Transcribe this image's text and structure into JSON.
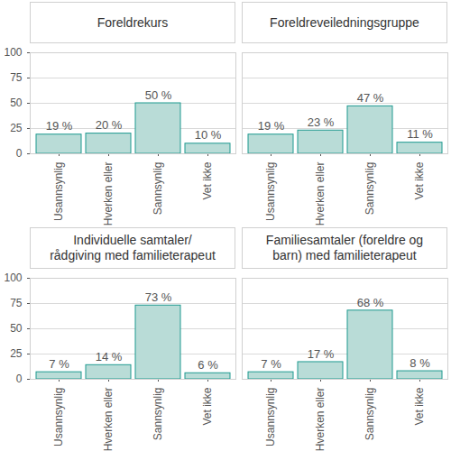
{
  "chart_data": [
    {
      "type": "bar",
      "title": "Foreldrekurs",
      "categories": [
        "Usannsynlig",
        "Hverken eller",
        "Sannsynlig",
        "Vet ikke"
      ],
      "values": [
        19,
        20,
        50,
        10
      ],
      "value_labels": [
        "19 %",
        "20 %",
        "50 %",
        "10 %"
      ],
      "color": "#b9dcd7",
      "ylim": [
        0,
        100
      ],
      "yticks": [
        0,
        25,
        50,
        75,
        100
      ],
      "grid": true,
      "data_labels": true
    },
    {
      "type": "bar",
      "title": "Foreldreveiledningsgruppe",
      "categories": [
        "Usannsynlig",
        "Hverken eller",
        "Sannsynlig",
        "Vet ikke"
      ],
      "values": [
        19,
        23,
        47,
        11
      ],
      "value_labels": [
        "19 %",
        "23 %",
        "47 %",
        "11 %"
      ],
      "color": "#b9dcd7",
      "ylim": [
        0,
        100
      ],
      "yticks": [
        0,
        25,
        50,
        75,
        100
      ],
      "grid": true,
      "data_labels": true,
      "tick_labels": "x"
    },
    {
      "type": "bar",
      "title": "Individuelle samtaler/\nrådgiving med familieterapeut",
      "categories": [
        "Usannsynlig",
        "Hverken eller",
        "Sannsynlig",
        "Vet ikke"
      ],
      "values": [
        7,
        14,
        73,
        6
      ],
      "value_labels": [
        "7 %",
        "14 %",
        "73 %",
        "6 %"
      ],
      "color": "#b9dcd7",
      "ylim": [
        0,
        100
      ],
      "yticks": [
        0,
        25,
        50,
        75,
        100
      ],
      "grid": true,
      "data_labels": true
    },
    {
      "type": "bar",
      "title": "Familiesamtaler (foreldre og\nbarn) med familieterapeut",
      "categories": [
        "Usannsynlig",
        "Hverken eller",
        "Sannsynlig",
        "Vet ikke"
      ],
      "values": [
        7,
        17,
        68,
        8
      ],
      "value_labels": [
        "7 %",
        "17 %",
        "68 %",
        "8 %"
      ],
      "color": "#b9dcd7",
      "ylim": [
        0,
        100
      ],
      "yticks": [
        0,
        25,
        50,
        75,
        100
      ],
      "grid": true,
      "data_labels": true,
      "tick_labels": "x"
    }
  ]
}
